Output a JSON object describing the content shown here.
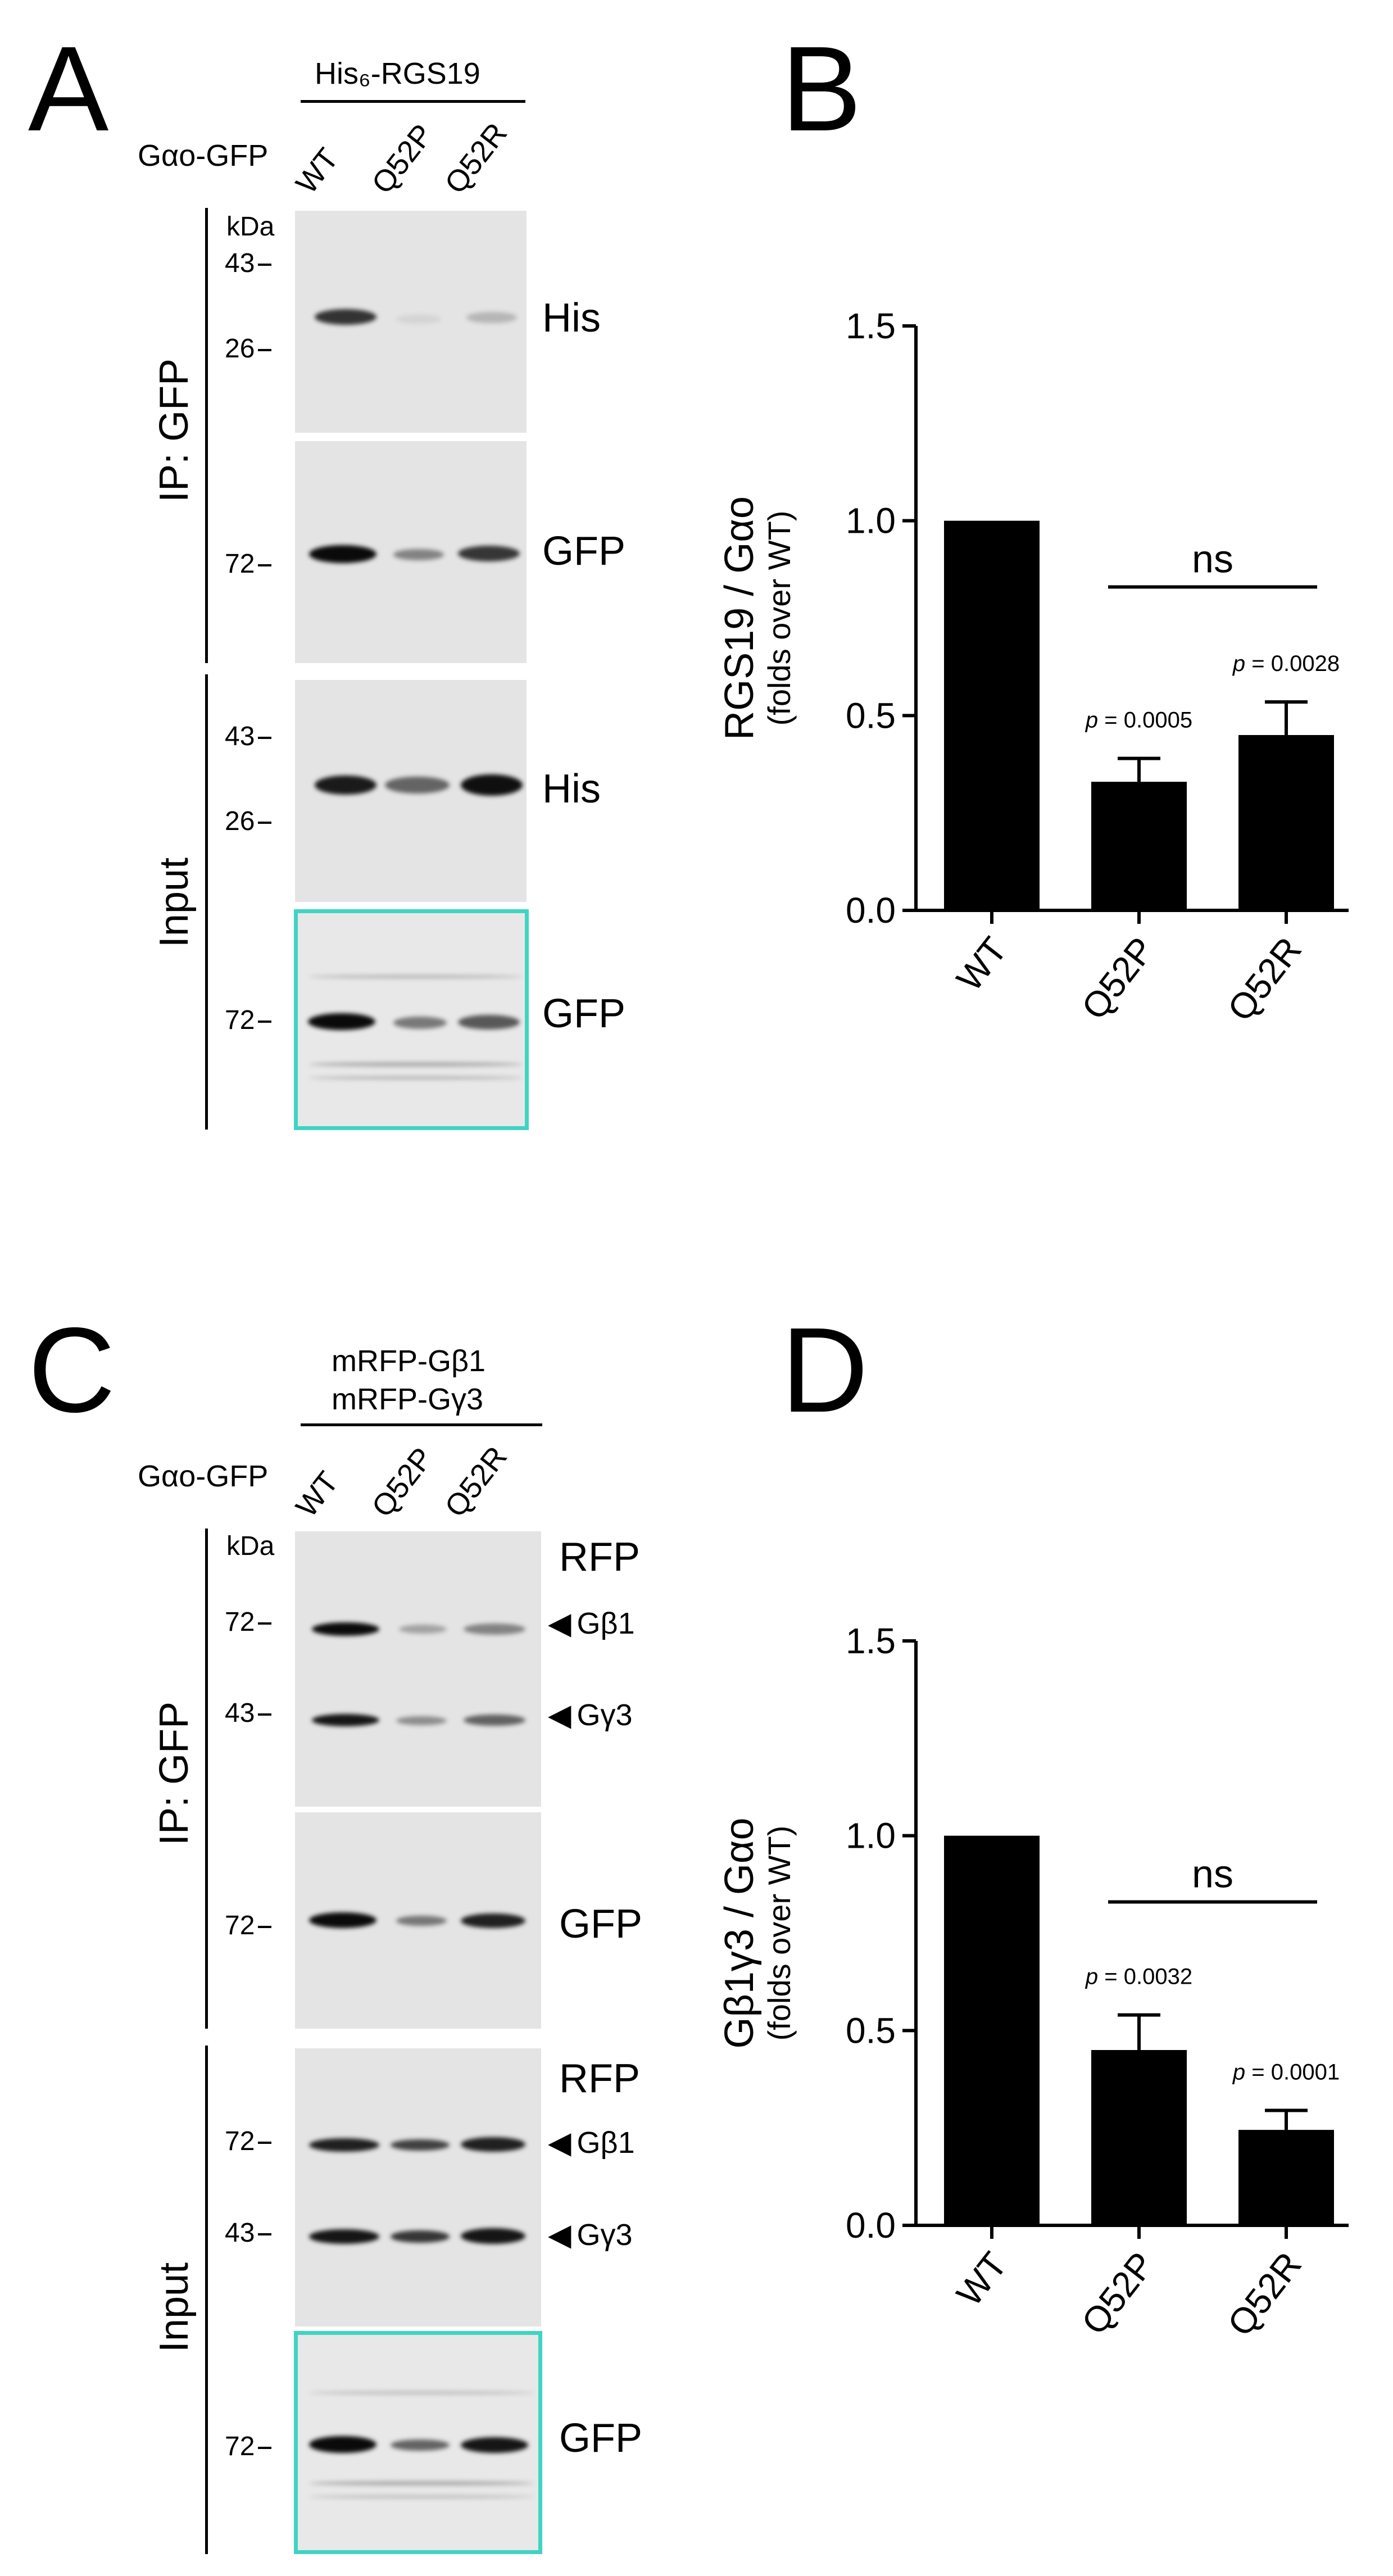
{
  "panel_letters": {
    "a": "A",
    "b": "B",
    "c": "C",
    "d": "D"
  },
  "panel_a": {
    "construct": "His₆-RGS19",
    "row_label": "Gαo-GFP",
    "lanes": [
      "WT",
      "Q52P",
      "Q52R"
    ],
    "kda": "kDa",
    "ip_label": "IP: GFP",
    "input_label": "Input",
    "blots": [
      {
        "label": "His",
        "markers": [
          "43",
          "26"
        ],
        "intensities": [
          0.85,
          0.08,
          0.22
        ]
      },
      {
        "label": "GFP",
        "markers": [
          "72"
        ],
        "intensities": [
          1.0,
          0.45,
          0.8
        ]
      },
      {
        "label": "His",
        "markers": [
          "43",
          "26"
        ],
        "intensities": [
          0.95,
          0.6,
          1.0
        ]
      },
      {
        "label": "GFP",
        "markers": [
          "72"
        ],
        "intensities": [
          1.0,
          0.5,
          0.65
        ]
      }
    ]
  },
  "panel_c": {
    "construct_line1": "mRFP-Gβ1",
    "construct_line2": "mRFP-Gγ3",
    "row_label": "Gαo-GFP",
    "lanes": [
      "WT",
      "Q52P",
      "Q52R"
    ],
    "kda": "kDa",
    "ip_label": "IP: GFP",
    "input_label": "Input",
    "ip_rfp": {
      "label": "RFP",
      "m72": "72",
      "m43": "43",
      "gb1": "Gβ1",
      "gg3": "Gγ3"
    },
    "ip_gfp": {
      "label": "GFP",
      "m72": "72"
    },
    "in_rfp": {
      "label": "RFP",
      "m72": "72",
      "m43": "43",
      "gb1": "Gβ1",
      "gg3": "Gγ3"
    },
    "in_gfp": {
      "label": "GFP",
      "m72": "72"
    }
  },
  "chart_data": [
    {
      "type": "bar",
      "panel": "B",
      "categories": [
        "WT",
        "Q52P",
        "Q52R"
      ],
      "values": [
        1.0,
        0.33,
        0.45
      ],
      "errors": [
        0,
        0.06,
        0.085
      ],
      "ylabel": "RGS19 / Gαo",
      "ylabel_sub": "(folds over WT)",
      "ylim": [
        0,
        1.5
      ],
      "yticks": [
        "0.0",
        "0.5",
        "1.0",
        "1.5"
      ],
      "annotations": [
        "p = 0.0005",
        "p = 0.0028"
      ],
      "bracket_label": "ns"
    },
    {
      "type": "bar",
      "panel": "D",
      "categories": [
        "WT",
        "Q52P",
        "Q52R"
      ],
      "values": [
        1.0,
        0.45,
        0.245
      ],
      "errors": [
        0,
        0.09,
        0.05
      ],
      "ylabel": "Gβ1γ3 / Gαo",
      "ylabel_sub": "(folds over WT)",
      "ylim": [
        0,
        1.5
      ],
      "yticks": [
        "0.0",
        "0.5",
        "1.0",
        "1.5"
      ],
      "annotations": [
        "p = 0.0032",
        "p = 0.0001"
      ],
      "bracket_label": "ns"
    }
  ]
}
